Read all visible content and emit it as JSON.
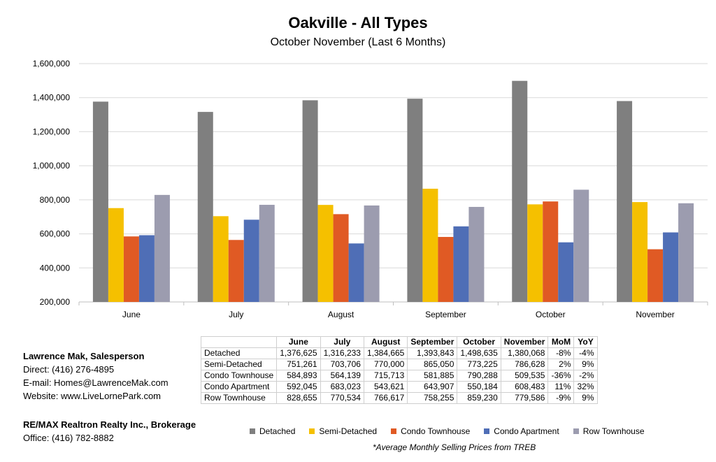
{
  "chart_data": {
    "type": "bar",
    "title": "Oakville - All Types",
    "subtitle": "October November (Last 6 Months)",
    "categories": [
      "June",
      "July",
      "August",
      "September",
      "October",
      "November"
    ],
    "series": [
      {
        "name": "Detached",
        "color": "#7f7f7f",
        "values": [
          1376625,
          1316233,
          1384665,
          1393843,
          1498635,
          1380068
        ]
      },
      {
        "name": "Semi-Detached",
        "color": "#f5c000",
        "values": [
          751261,
          703706,
          770000,
          865050,
          773225,
          786628
        ]
      },
      {
        "name": "Condo Townhouse",
        "color": "#e05a24",
        "values": [
          584893,
          564139,
          715713,
          581885,
          790288,
          509535
        ]
      },
      {
        "name": "Condo Apartment",
        "color": "#4f6eb6",
        "values": [
          592045,
          683023,
          543621,
          643907,
          550184,
          608483
        ]
      },
      {
        "name": "Row Townhouse",
        "color": "#9c9caf",
        "values": [
          828655,
          770534,
          766617,
          758255,
          859230,
          779586
        ]
      }
    ],
    "ylim": [
      200000,
      1600000
    ],
    "yticks": [
      "200,000",
      "400,000",
      "600,000",
      "800,000",
      "1,000,000",
      "1,200,000",
      "1,400,000",
      "1,600,000"
    ],
    "grid": true,
    "legend": "bottom"
  },
  "table": {
    "headers": [
      "",
      "June",
      "July",
      "August",
      "September",
      "October",
      "November",
      "MoM",
      "YoY"
    ],
    "rows": [
      [
        "Detached",
        "1,376,625",
        "1,316,233",
        "1,384,665",
        "1,393,843",
        "1,498,635",
        "1,380,068",
        "-8%",
        "-4%"
      ],
      [
        "Semi-Detached",
        "751,261",
        "703,706",
        "770,000",
        "865,050",
        "773,225",
        "786,628",
        "2%",
        "9%"
      ],
      [
        "Condo Townhouse",
        "584,893",
        "564,139",
        "715,713",
        "581,885",
        "790,288",
        "509,535",
        "-36%",
        "-2%"
      ],
      [
        "Condo Apartment",
        "592,045",
        "683,023",
        "543,621",
        "643,907",
        "550,184",
        "608,483",
        "11%",
        "32%"
      ],
      [
        "Row Townhouse",
        "828,655",
        "770,534",
        "766,617",
        "758,255",
        "859,230",
        "779,586",
        "-9%",
        "9%"
      ]
    ]
  },
  "contact": {
    "name": "Lawrence Mak, Salesperson",
    "direct": "Direct:  (416) 276-4895",
    "email": "E-mail:  Homes@LawrenceMak.com",
    "website": "Website: www.LiveLornePark.com",
    "brokerage": "RE/MAX Realtron Realty Inc., Brokerage",
    "office": "Office: (416) 782-8882"
  },
  "footnote": "*Average Monthly Selling Prices  from TREB"
}
